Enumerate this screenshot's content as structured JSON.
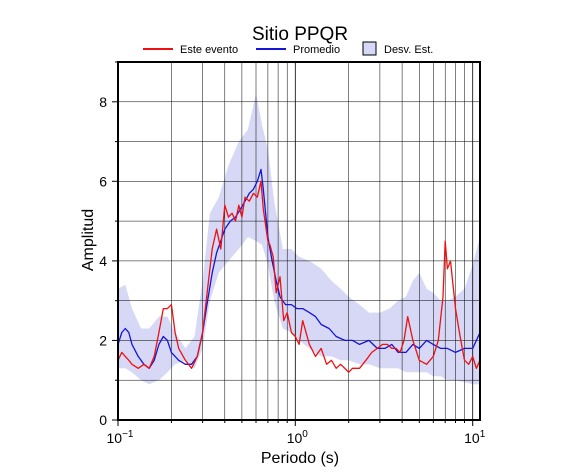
{
  "chart_data": {
    "type": "line",
    "title": "Sitio PPQR",
    "xlabel": "Periodo (s)",
    "ylabel": "Amplitud",
    "xscale": "log",
    "xlim": [
      0.1,
      11
    ],
    "ylim": [
      0,
      9
    ],
    "grid": true,
    "legend_position": "top",
    "x_ticks": [
      {
        "value": 0.1,
        "base": "10",
        "exp": "−1"
      },
      {
        "value": 1,
        "base": "10",
        "exp": "0"
      },
      {
        "value": 10,
        "base": "10",
        "exp": "1"
      }
    ],
    "y_ticks": [
      {
        "value": 0,
        "label": "0"
      },
      {
        "value": 2,
        "label": "2"
      },
      {
        "value": 4,
        "label": "4"
      },
      {
        "value": 6,
        "label": "6"
      },
      {
        "value": 8,
        "label": "8"
      }
    ],
    "legend": [
      {
        "label": "Este evento",
        "kind": "line",
        "color": "#ee1111"
      },
      {
        "label": "Promedio",
        "kind": "line",
        "color": "#1515d8"
      },
      {
        "label": "Desv. Est.",
        "kind": "box",
        "color": "#d6d8f6"
      }
    ],
    "band": {
      "name": "Desv. Est.",
      "color": "#d6d8f6",
      "x": [
        0.1,
        0.11,
        0.12,
        0.135,
        0.15,
        0.17,
        0.19,
        0.21,
        0.24,
        0.27,
        0.3,
        0.33,
        0.37,
        0.42,
        0.48,
        0.54,
        0.6,
        0.65,
        0.7,
        0.76,
        0.85,
        0.95,
        1.05,
        1.2,
        1.4,
        1.6,
        1.8,
        2.0,
        2.3,
        2.6,
        3.0,
        3.4,
        3.8,
        4.2,
        4.6,
        5.0,
        5.5,
        6.0,
        6.6,
        7.2,
        8.0,
        9.0,
        10.0,
        11.0
      ],
      "upper": [
        3.3,
        3.4,
        2.8,
        2.3,
        2.3,
        2.6,
        2.6,
        2.2,
        1.8,
        2.1,
        3.5,
        5.2,
        5.6,
        6.4,
        7.0,
        7.3,
        8.2,
        7.4,
        6.8,
        5.5,
        4.3,
        4.3,
        4.1,
        4.0,
        3.8,
        3.5,
        3.3,
        3.1,
        2.9,
        2.7,
        2.7,
        2.8,
        3.0,
        3.1,
        3.5,
        3.7,
        3.3,
        3.2,
        3.0,
        3.0,
        3.1,
        3.3,
        3.9,
        4.6
      ],
      "lower": [
        1.3,
        1.3,
        1.2,
        1.0,
        0.9,
        1.0,
        1.2,
        1.4,
        1.5,
        1.3,
        1.8,
        3.0,
        3.7,
        4.0,
        4.3,
        4.6,
        4.5,
        4.4,
        3.9,
        3.0,
        2.3,
        2.2,
        2.0,
        1.8,
        1.6,
        1.6,
        1.5,
        1.5,
        1.4,
        1.4,
        1.3,
        1.3,
        1.3,
        1.2,
        1.2,
        1.2,
        1.2,
        1.1,
        1.1,
        1.0,
        1.0,
        0.95,
        0.9,
        0.9
      ]
    },
    "series": [
      {
        "name": "Promedio",
        "color": "#1515d8",
        "x": [
          0.1,
          0.105,
          0.11,
          0.115,
          0.12,
          0.13,
          0.14,
          0.15,
          0.16,
          0.17,
          0.18,
          0.19,
          0.2,
          0.22,
          0.24,
          0.26,
          0.28,
          0.3,
          0.32,
          0.34,
          0.36,
          0.38,
          0.4,
          0.43,
          0.46,
          0.49,
          0.52,
          0.55,
          0.58,
          0.61,
          0.64,
          0.66,
          0.68,
          0.7,
          0.74,
          0.78,
          0.82,
          0.88,
          0.95,
          1.02,
          1.1,
          1.2,
          1.3,
          1.4,
          1.55,
          1.7,
          1.9,
          2.1,
          2.3,
          2.6,
          2.9,
          3.2,
          3.5,
          3.8,
          4.2,
          4.6,
          5.0,
          5.5,
          6.0,
          6.6,
          7.2,
          8.0,
          9.0,
          10.0,
          10.5,
          11.0
        ],
        "y": [
          1.9,
          2.2,
          2.3,
          2.2,
          1.9,
          1.6,
          1.4,
          1.3,
          1.5,
          1.9,
          2.1,
          2.0,
          1.7,
          1.5,
          1.4,
          1.4,
          1.6,
          2.2,
          3.0,
          3.7,
          4.2,
          4.5,
          4.8,
          5.0,
          5.1,
          5.3,
          5.5,
          5.7,
          5.8,
          6.0,
          6.3,
          5.8,
          5.2,
          4.6,
          4.0,
          3.5,
          3.1,
          2.9,
          2.9,
          2.8,
          2.8,
          2.7,
          2.6,
          2.4,
          2.3,
          2.1,
          2.0,
          2.0,
          1.9,
          2.0,
          1.8,
          1.8,
          1.9,
          1.7,
          1.7,
          1.9,
          1.8,
          2.0,
          1.9,
          1.8,
          1.8,
          1.7,
          1.8,
          1.8,
          2.0,
          2.2
        ]
      },
      {
        "name": "Este evento",
        "color": "#ee1111",
        "x": [
          0.1,
          0.105,
          0.11,
          0.115,
          0.12,
          0.13,
          0.14,
          0.15,
          0.16,
          0.17,
          0.18,
          0.19,
          0.2,
          0.21,
          0.22,
          0.24,
          0.26,
          0.28,
          0.3,
          0.32,
          0.34,
          0.36,
          0.38,
          0.4,
          0.42,
          0.44,
          0.46,
          0.48,
          0.5,
          0.52,
          0.55,
          0.58,
          0.61,
          0.64,
          0.66,
          0.68,
          0.7,
          0.72,
          0.75,
          0.78,
          0.82,
          0.86,
          0.9,
          0.95,
          1.0,
          1.05,
          1.1,
          1.2,
          1.3,
          1.4,
          1.5,
          1.6,
          1.7,
          1.8,
          1.9,
          2.0,
          2.1,
          2.3,
          2.5,
          2.7,
          2.9,
          3.1,
          3.3,
          3.5,
          3.7,
          3.9,
          4.1,
          4.3,
          4.6,
          5.0,
          5.5,
          6.0,
          6.4,
          6.8,
          7.0,
          7.2,
          7.5,
          8.0,
          8.5,
          9.0,
          9.5,
          10.0,
          10.5,
          11.0
        ],
        "y": [
          1.5,
          1.7,
          1.6,
          1.5,
          1.4,
          1.3,
          1.4,
          1.3,
          1.6,
          2.2,
          2.8,
          2.8,
          2.9,
          2.2,
          1.8,
          1.5,
          1.3,
          1.6,
          2.2,
          3.3,
          4.3,
          4.8,
          4.3,
          5.4,
          5.1,
          5.2,
          5.0,
          5.4,
          5.1,
          5.6,
          5.5,
          5.7,
          5.6,
          6.0,
          5.3,
          4.9,
          4.5,
          4.4,
          4.1,
          3.2,
          3.6,
          2.5,
          2.7,
          2.2,
          2.1,
          1.9,
          2.5,
          1.9,
          1.6,
          1.8,
          1.4,
          1.5,
          1.3,
          1.4,
          1.3,
          1.2,
          1.3,
          1.3,
          1.5,
          1.7,
          1.8,
          1.9,
          1.9,
          1.8,
          1.8,
          1.7,
          2.0,
          2.6,
          2.0,
          1.5,
          1.4,
          1.6,
          2.0,
          3.1,
          4.5,
          3.8,
          4.0,
          2.8,
          2.1,
          1.5,
          1.4,
          1.6,
          1.3,
          1.5
        ]
      }
    ]
  }
}
